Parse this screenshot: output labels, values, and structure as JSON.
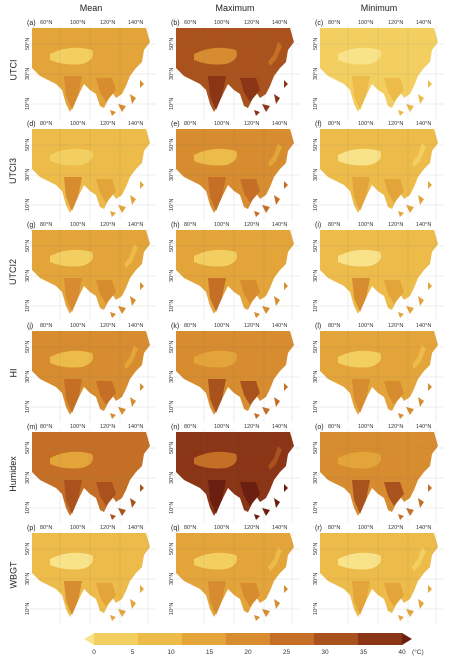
{
  "columns": [
    "Mean",
    "Maximum",
    "Minimum"
  ],
  "rows": [
    {
      "label": "UTCI",
      "panels": [
        {
          "tag": "(a)",
          "lon": [
            "60°N",
            "100°N",
            "120°N",
            "140°N"
          ],
          "lat": [
            "50°N",
            "30°N",
            "10°N"
          ],
          "level": 0.4
        },
        {
          "tag": "(b)",
          "lon": [
            "60°N",
            "100°N",
            "120°N",
            "140°N"
          ],
          "lat": [
            "50°N",
            "30°N",
            "10°N"
          ],
          "level": 0.7
        },
        {
          "tag": "(c)",
          "lon": [
            "80°N",
            "100°N",
            "120°N",
            "140°N"
          ],
          "lat": [
            "50°N",
            "30°N",
            "10°N"
          ],
          "level": 0.18
        }
      ]
    },
    {
      "label": "UTCI3",
      "panels": [
        {
          "tag": "(d)",
          "lon": [
            "80°N",
            "100°N",
            "120°N",
            "140°N"
          ],
          "lat": [
            "50°N",
            "30°N",
            "10°N"
          ],
          "level": 0.32
        },
        {
          "tag": "(e)",
          "lon": [
            "80°N",
            "100°N",
            "120°N",
            "140°N"
          ],
          "lat": [
            "50°N",
            "30°N",
            "10°N"
          ],
          "level": 0.48
        },
        {
          "tag": "(f)",
          "lon": [
            "80°N",
            "100°N",
            "120°N",
            "140°N"
          ],
          "lat": [
            "50°N",
            "30°N",
            "10°N"
          ],
          "level": 0.24
        }
      ]
    },
    {
      "label": "UTCI2",
      "panels": [
        {
          "tag": "(g)",
          "lon": [
            "80°N",
            "100°N",
            "120°N",
            "140°N"
          ],
          "lat": [
            "50°N",
            "30°N",
            "10°N"
          ],
          "level": 0.38
        },
        {
          "tag": "(h)",
          "lon": [
            "80°N",
            "100°N",
            "120°N",
            "140°N"
          ],
          "lat": [
            "50°N",
            "30°N",
            "10°N"
          ],
          "level": 0.42
        },
        {
          "tag": "(i)",
          "lon": [
            "80°N",
            "100°N",
            "120°N",
            "140°N"
          ],
          "lat": [
            "50°N",
            "30°N",
            "10°N"
          ],
          "level": 0.3
        }
      ]
    },
    {
      "label": "HI",
      "panels": [
        {
          "tag": "(j)",
          "lon": [
            "80°N",
            "100°N",
            "120°N",
            "140°N"
          ],
          "lat": [
            "50°N",
            "30°N",
            "10°N"
          ],
          "level": 0.45
        },
        {
          "tag": "(k)",
          "lon": [
            "80°N",
            "100°N",
            "120°N",
            "140°N"
          ],
          "lat": [
            "50°N",
            "30°N",
            "10°N"
          ],
          "level": 0.55
        },
        {
          "tag": "(l)",
          "lon": [
            "80°N",
            "100°N",
            "120°N",
            "140°N"
          ],
          "lat": [
            "50°N",
            "30°N",
            "10°N"
          ],
          "level": 0.36
        }
      ]
    },
    {
      "label": "Humidex",
      "panels": [
        {
          "tag": "(m)",
          "lon": [
            "80°N",
            "100°N",
            "120°N",
            "140°N"
          ],
          "lat": [
            "50°N",
            "30°N",
            "10°N"
          ],
          "level": 0.62
        },
        {
          "tag": "(n)",
          "lon": [
            "80°N",
            "100°N",
            "120°N",
            "140°N"
          ],
          "lat": [
            "50°N",
            "30°N",
            "10°N"
          ],
          "level": 0.8
        },
        {
          "tag": "(o)",
          "lon": [
            "80°N",
            "100°N",
            "120°N",
            "140°N"
          ],
          "lat": [
            "50°N",
            "30°N",
            "10°N"
          ],
          "level": 0.55
        }
      ]
    },
    {
      "label": "WBGT",
      "panels": [
        {
          "tag": "(p)",
          "lon": [
            "80°N",
            "100°N",
            "120°N",
            "140°N"
          ],
          "lat": [
            "50°N",
            "30°N",
            "10°N"
          ],
          "level": 0.3
        },
        {
          "tag": "(q)",
          "lon": [
            "80°N",
            "100°N",
            "120°N",
            "140°N"
          ],
          "lat": [
            "50°N",
            "30°N",
            "10°N"
          ],
          "level": 0.36
        },
        {
          "tag": "(r)",
          "lon": [
            "80°N",
            "100°N",
            "120°N",
            "140°N"
          ],
          "lat": [
            "50°N",
            "30°N",
            "10°N"
          ],
          "level": 0.26
        }
      ]
    }
  ],
  "colorbar": {
    "ticks": [
      "0",
      "5",
      "10",
      "15",
      "20",
      "25",
      "30",
      "35",
      "40"
    ],
    "unit": "(°C)",
    "colors": [
      "#f8e38a",
      "#f3cf62",
      "#ecbb4a",
      "#e3a43a",
      "#d68c2f",
      "#c46f25",
      "#a9521d",
      "#8a3516",
      "#6b1f10"
    ]
  }
}
